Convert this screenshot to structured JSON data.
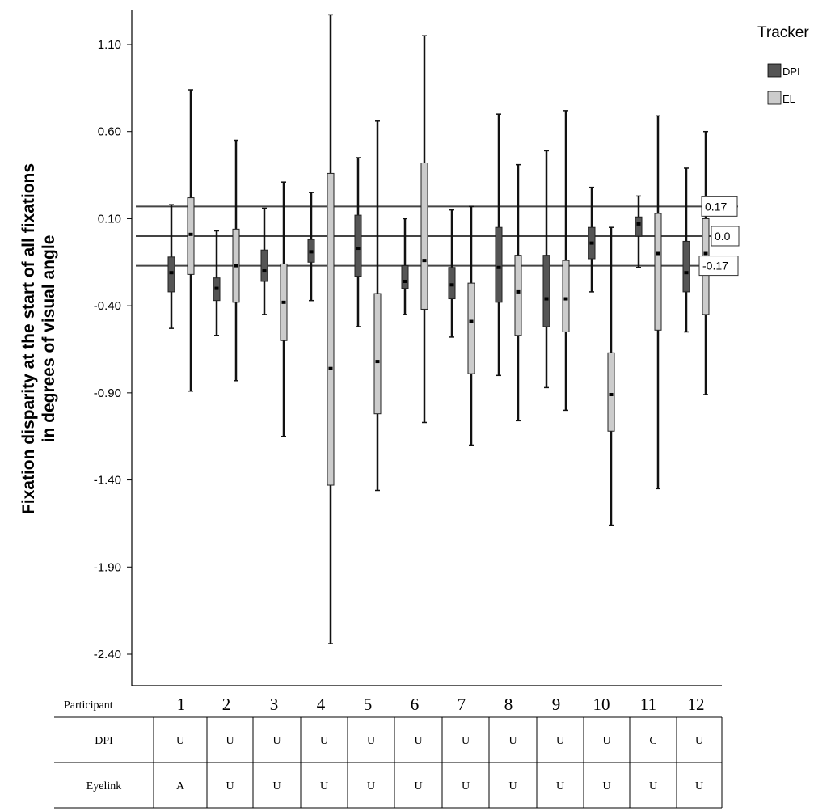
{
  "chart_data": {
    "type": "boxplot",
    "ylabel_line1": "Fixation disparity at the start of all fixations",
    "ylabel_line2": "in degrees of visual angle",
    "ylim": [
      -2.6,
      1.3
    ],
    "yticks": [
      "1.10",
      "0.60",
      "0.10",
      "-0.40",
      "-0.90",
      "-1.40",
      "-1.90",
      "-2.40"
    ],
    "ytick_values": [
      1.1,
      0.6,
      0.1,
      -0.4,
      -0.9,
      -1.4,
      -1.9,
      -2.4
    ],
    "legend": {
      "title": "Tracker",
      "placement": "top-right",
      "entries": [
        {
          "label": "DPI",
          "color": "#555555"
        },
        {
          "label": "EL",
          "color": "#cccccc"
        }
      ]
    },
    "reference_lines": [
      {
        "value": 0.17,
        "label": "0.17"
      },
      {
        "value": 0.0,
        "label": "0.0"
      },
      {
        "value": -0.17,
        "label": "-0.17"
      }
    ],
    "categories": [
      "1",
      "2",
      "3",
      "4",
      "5",
      "6",
      "7",
      "8",
      "9",
      "10",
      "11",
      "12"
    ],
    "series": [
      {
        "name": "DPI",
        "boxes": [
          {
            "min": -0.53,
            "q1": -0.32,
            "median": -0.21,
            "q3": -0.12,
            "max": 0.18
          },
          {
            "min": -0.57,
            "q1": -0.37,
            "median": -0.3,
            "q3": -0.24,
            "max": 0.03
          },
          {
            "min": -0.45,
            "q1": -0.26,
            "median": -0.2,
            "q3": -0.08,
            "max": 0.16
          },
          {
            "min": -0.37,
            "q1": -0.15,
            "median": -0.09,
            "q3": -0.02,
            "max": 0.25
          },
          {
            "min": -0.52,
            "q1": -0.23,
            "median": -0.07,
            "q3": 0.12,
            "max": 0.45
          },
          {
            "min": -0.45,
            "q1": -0.3,
            "median": -0.26,
            "q3": -0.17,
            "max": 0.1
          },
          {
            "min": -0.58,
            "q1": -0.36,
            "median": -0.28,
            "q3": -0.18,
            "max": 0.15
          },
          {
            "min": -0.8,
            "q1": -0.38,
            "median": -0.18,
            "q3": 0.05,
            "max": 0.7
          },
          {
            "min": -0.87,
            "q1": -0.52,
            "median": -0.36,
            "q3": -0.11,
            "max": 0.49
          },
          {
            "min": -0.32,
            "q1": -0.13,
            "median": -0.04,
            "q3": 0.05,
            "max": 0.28
          },
          {
            "min": -0.18,
            "q1": 0.0,
            "median": 0.07,
            "q3": 0.11,
            "max": 0.23
          },
          {
            "min": -0.55,
            "q1": -0.32,
            "median": -0.21,
            "q3": -0.03,
            "max": 0.39
          }
        ]
      },
      {
        "name": "EL",
        "boxes": [
          {
            "min": -0.89,
            "q1": -0.22,
            "median": 0.01,
            "q3": 0.22,
            "max": 0.84
          },
          {
            "min": -0.83,
            "q1": -0.38,
            "median": -0.17,
            "q3": 0.04,
            "max": 0.55
          },
          {
            "min": -1.15,
            "q1": -0.6,
            "median": -0.38,
            "q3": -0.16,
            "max": 0.31
          },
          {
            "min": -2.34,
            "q1": -1.43,
            "median": -0.76,
            "q3": 0.36,
            "max": 1.27
          },
          {
            "min": -1.46,
            "q1": -1.02,
            "median": -0.72,
            "q3": -0.33,
            "max": 0.66
          },
          {
            "min": -1.07,
            "q1": -0.42,
            "median": -0.14,
            "q3": 0.42,
            "max": 1.15
          },
          {
            "min": -1.2,
            "q1": -0.79,
            "median": -0.49,
            "q3": -0.27,
            "max": 0.17
          },
          {
            "min": -1.06,
            "q1": -0.57,
            "median": -0.32,
            "q3": -0.11,
            "max": 0.41
          },
          {
            "min": -1.0,
            "q1": -0.55,
            "median": -0.36,
            "q3": -0.14,
            "max": 0.72
          },
          {
            "min": -1.66,
            "q1": -1.12,
            "median": -0.91,
            "q3": -0.67,
            "max": 0.05
          },
          {
            "min": -1.45,
            "q1": -0.54,
            "median": -0.1,
            "q3": 0.13,
            "max": 0.69
          },
          {
            "min": -0.91,
            "q1": -0.45,
            "median": -0.1,
            "q3": 0.1,
            "max": 0.6
          }
        ]
      }
    ]
  },
  "table": {
    "header_label": "Participant",
    "rows": [
      {
        "label": "DPI",
        "values": [
          "U",
          "U",
          "U",
          "U",
          "U",
          "U",
          "U",
          "U",
          "U",
          "U",
          "C",
          "U"
        ]
      },
      {
        "label": "Eyelink",
        "values": [
          "A",
          "U",
          "U",
          "U",
          "U",
          "U",
          "U",
          "U",
          "U",
          "U",
          "U",
          "U"
        ]
      }
    ]
  }
}
